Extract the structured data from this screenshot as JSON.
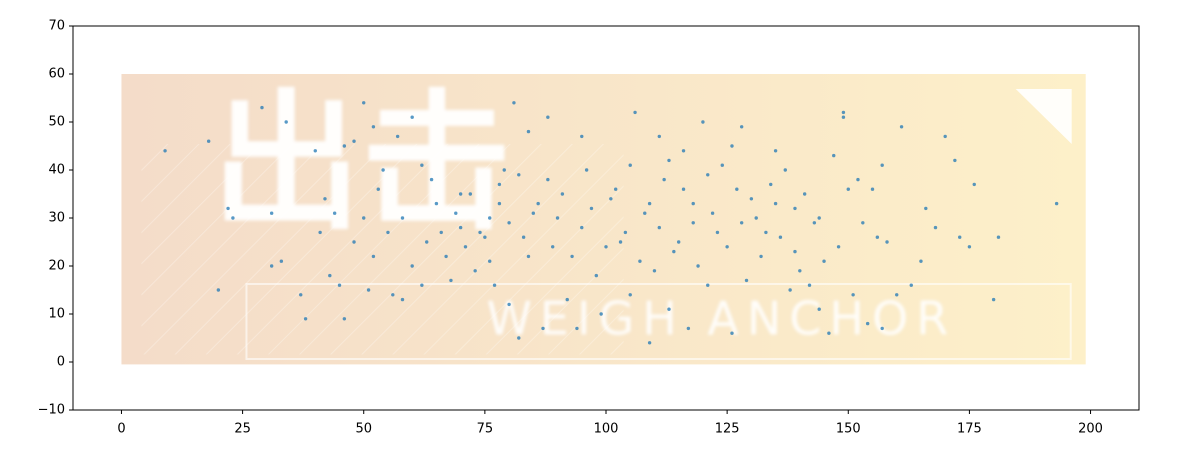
{
  "chart_data": {
    "type": "scatter",
    "image_texts": [
      "出击",
      "WEIGH ANCHOR"
    ],
    "image_extent": [
      0,
      199,
      -0.5,
      60
    ],
    "xlim": [
      -10,
      210
    ],
    "ylim": [
      -10,
      70
    ],
    "xticks": [
      0,
      25,
      50,
      75,
      100,
      125,
      150,
      175,
      200
    ],
    "yticks": [
      {
        "value": -10,
        "label": "−10"
      },
      0,
      10,
      20,
      30,
      40,
      50,
      60,
      70
    ],
    "color": "#1f77b4",
    "x": [
      9,
      18,
      20,
      22,
      23,
      29,
      31,
      31,
      33,
      34,
      37,
      38,
      40,
      41,
      42,
      43,
      45,
      46,
      46,
      48,
      50,
      51,
      52,
      53,
      55,
      57,
      58,
      60,
      62,
      64,
      66,
      68,
      70,
      72,
      74,
      76,
      78,
      80,
      81,
      82,
      83,
      84,
      86,
      87,
      88,
      90,
      92,
      94,
      95,
      97,
      99,
      100,
      102,
      104,
      105,
      106,
      108,
      109,
      110,
      111,
      112,
      113,
      115,
      116,
      117,
      118,
      120,
      121,
      123,
      124,
      126,
      127,
      128,
      129,
      131,
      132,
      134,
      135,
      136,
      138,
      139,
      140,
      142,
      143,
      144,
      146,
      147,
      148,
      149,
      149,
      150,
      151,
      152,
      153,
      154,
      155,
      156,
      157,
      157,
      158,
      160,
      161,
      163,
      165,
      166,
      168,
      170,
      172,
      173,
      175,
      176,
      180,
      181,
      193,
      76,
      78,
      80,
      82,
      84,
      85,
      88,
      89,
      91,
      93,
      95,
      96,
      98,
      101,
      103,
      105,
      107,
      109,
      111,
      113,
      114,
      116,
      118,
      119,
      121,
      122,
      125,
      126,
      128,
      130,
      133,
      135,
      137,
      139,
      141,
      144,
      145,
      60,
      63,
      65,
      67,
      69,
      71,
      73,
      75,
      77,
      79,
      58,
      56,
      50,
      48,
      44,
      52,
      54,
      62,
      70
    ],
    "y": [
      44,
      46,
      15,
      32,
      30,
      53,
      31,
      20,
      21,
      50,
      14,
      9,
      44,
      27,
      34,
      18,
      16,
      9,
      45,
      46,
      54,
      15,
      49,
      36,
      27,
      47,
      30,
      51,
      41,
      38,
      27,
      17,
      28,
      35,
      27,
      21,
      37,
      12,
      54,
      5,
      26,
      48,
      33,
      7,
      51,
      30,
      13,
      7,
      47,
      32,
      10,
      24,
      36,
      27,
      14,
      52,
      31,
      4,
      19,
      47,
      38,
      11,
      25,
      44,
      7,
      33,
      50,
      16,
      27,
      41,
      6,
      36,
      49,
      17,
      30,
      22,
      37,
      44,
      26,
      15,
      32,
      19,
      16,
      29,
      11,
      6,
      43,
      24,
      52,
      51,
      36,
      14,
      38,
      29,
      8,
      36,
      26,
      7,
      41,
      25,
      14,
      49,
      16,
      21,
      32,
      28,
      47,
      42,
      26,
      24,
      37,
      13,
      26,
      33,
      30,
      33,
      29,
      39,
      22,
      31,
      38,
      24,
      35,
      22,
      28,
      40,
      18,
      34,
      25,
      41,
      21,
      33,
      28,
      42,
      23,
      36,
      29,
      20,
      39,
      31,
      24,
      45,
      29,
      34,
      27,
      33,
      40,
      23,
      35,
      30,
      21,
      20,
      25,
      33,
      22,
      31,
      24,
      19,
      26,
      16,
      40,
      13,
      14,
      30,
      25,
      31,
      22,
      40,
      16,
      35
    ]
  }
}
